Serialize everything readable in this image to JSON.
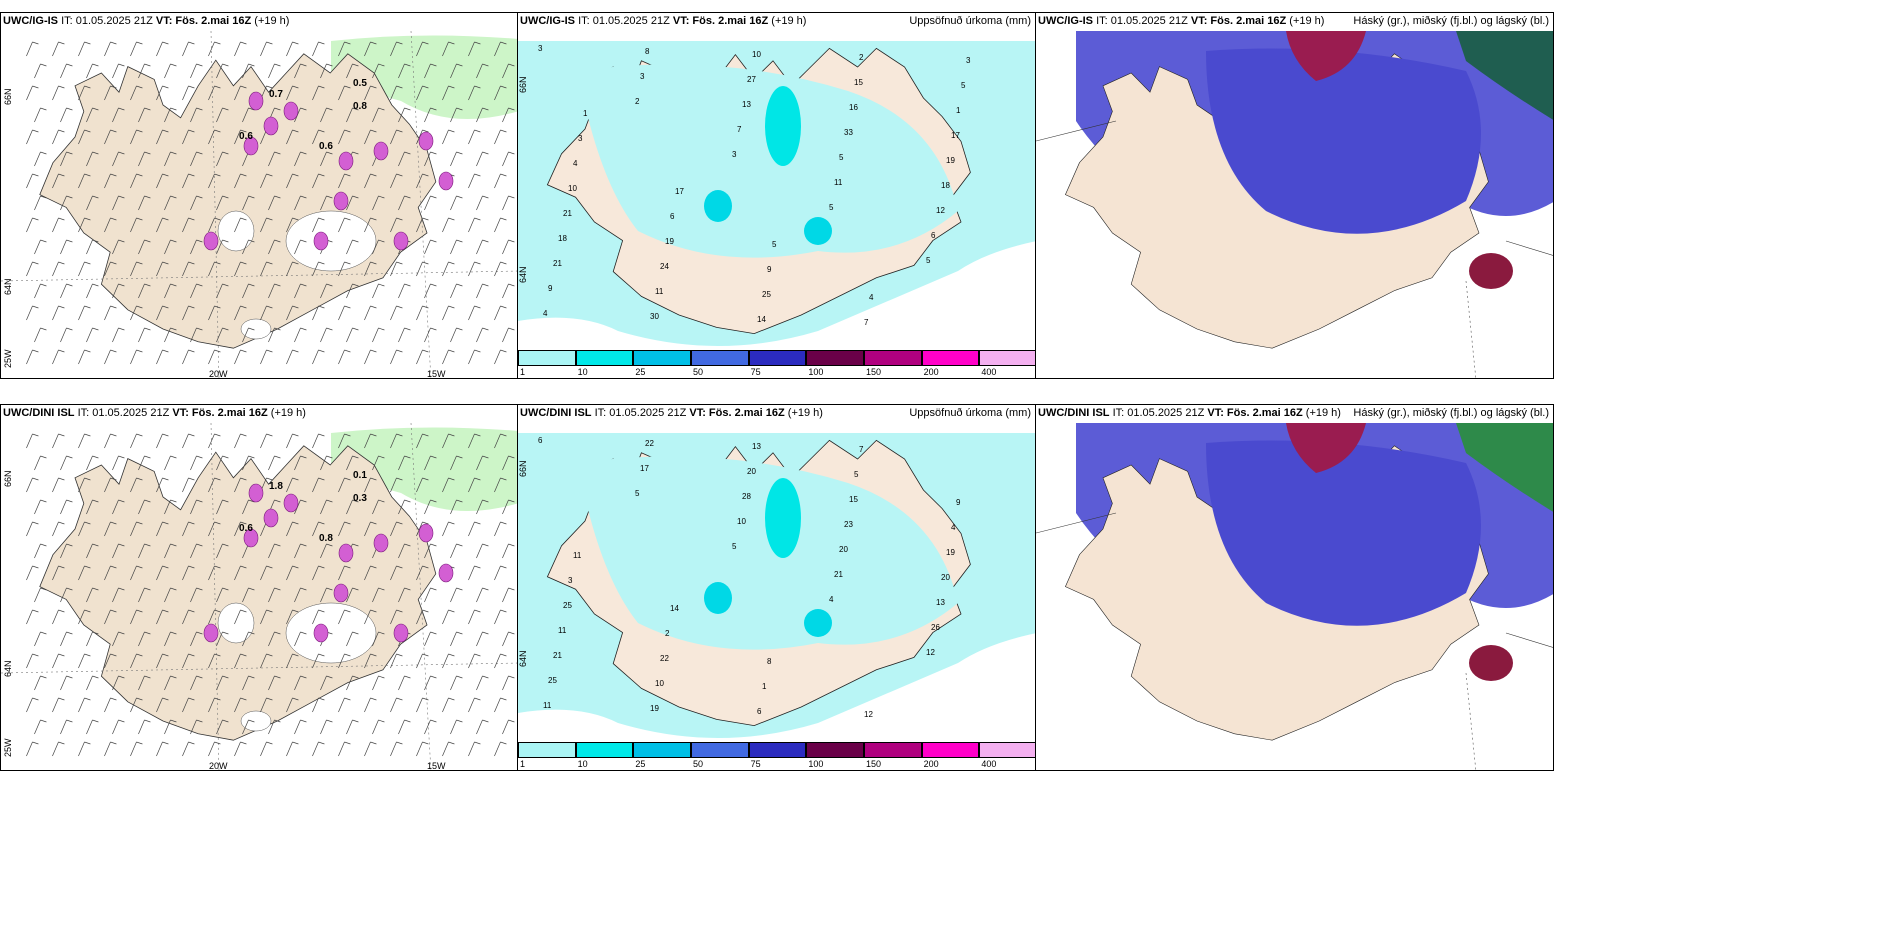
{
  "panels": [
    {
      "id": "p1",
      "left": "UWC/IG-IS",
      "it": "IT: 01.05.2025 21Z",
      "vt": "VT: Fös. 2.mai 16Z",
      "fc": "(+19 h)",
      "right": "",
      "axes": {
        "lat": [
          "66N",
          "64N",
          "25W"
        ],
        "lon": [
          "20W",
          "15W"
        ]
      }
    },
    {
      "id": "p2",
      "left": "UWC/IG-IS",
      "it": "IT: 01.05.2025 21Z",
      "vt": "VT: Fös. 2.mai 16Z",
      "fc": "(+19 h)",
      "right": "Uppsöfnuð úrkoma (mm)",
      "axes": {
        "lat": [
          "66N",
          "64N"
        ],
        "lon": []
      }
    },
    {
      "id": "p3",
      "left": "UWC/IG-IS",
      "it": "IT: 01.05.2025 21Z",
      "vt": "VT: Fös. 2.mai 16Z",
      "fc": "(+19 h)",
      "right": "Háský (gr.), miðský (fj.bl.) og lágský (bl.)",
      "axes": {
        "lat": [],
        "lon": []
      }
    },
    {
      "id": "p4",
      "left": "UWC/DINI ISL",
      "it": "IT: 01.05.2025 21Z",
      "vt": "VT: Fös. 2.mai 16Z",
      "fc": "(+19 h)",
      "right": "",
      "axes": {
        "lat": [
          "66N",
          "64N",
          "25W"
        ],
        "lon": [
          "20W",
          "15W"
        ]
      }
    },
    {
      "id": "p5",
      "left": "UWC/DINI ISL",
      "it": "IT: 01.05.2025 21Z",
      "vt": "VT: Fös. 2.mai 16Z",
      "fc": "(+19 h)",
      "right": "Uppsöfnuð úrkoma (mm)",
      "axes": {
        "lat": [
          "66N",
          "64N"
        ],
        "lon": []
      }
    },
    {
      "id": "p6",
      "left": "UWC/DINI ISL",
      "it": "IT: 01.05.2025 21Z",
      "vt": "VT: Fös. 2.mai 16Z",
      "fc": "(+19 h)",
      "right": "Háský (gr.), miðský (fj.bl.) og lágský (bl.)",
      "axes": {
        "lat": [],
        "lon": []
      }
    }
  ],
  "colorbar": {
    "ticks": [
      "1",
      "10",
      "25",
      "50",
      "75",
      "100",
      "150",
      "200",
      "400"
    ],
    "colors": [
      "#aaf5f5",
      "#00e8e8",
      "#00bfe6",
      "#4169e1",
      "#2b2bbf",
      "#6a0048",
      "#b0007f",
      "#ff00c8",
      "#f4b0f0"
    ]
  },
  "precip_top": [
    "3",
    "2",
    "3",
    "5",
    "5",
    "4",
    "3",
    "7",
    "11",
    "6",
    "9",
    "8",
    "13",
    "5",
    "12",
    "21",
    "30",
    "27",
    "33",
    "18",
    "18",
    "11",
    "10",
    "16",
    "19",
    "21",
    "24",
    "14",
    "15",
    "17",
    "10",
    "19",
    "25",
    "2",
    "1",
    "4",
    "6",
    "9",
    "7",
    "5",
    "3",
    "17",
    "5",
    "4",
    "3",
    "1"
  ],
  "precip_bottom": [
    "6",
    "5",
    "5",
    "4",
    "12",
    "11",
    "17",
    "10",
    "21",
    "26",
    "25",
    "22",
    "28",
    "20",
    "13",
    "21",
    "19",
    "20",
    "23",
    "20",
    "11",
    "10",
    "13",
    "15",
    "19",
    "25",
    "22",
    "6",
    "5",
    "4",
    "3",
    "2",
    "1",
    "7",
    "9",
    "11",
    "14",
    "8",
    "12"
  ],
  "wind_labels_top": [
    "0.5",
    "0.8",
    "0.6",
    "0.7",
    "0.6"
  ],
  "wind_labels_bottom": [
    "0.1",
    "0.3",
    "0.8",
    "1.8",
    "0.6"
  ]
}
